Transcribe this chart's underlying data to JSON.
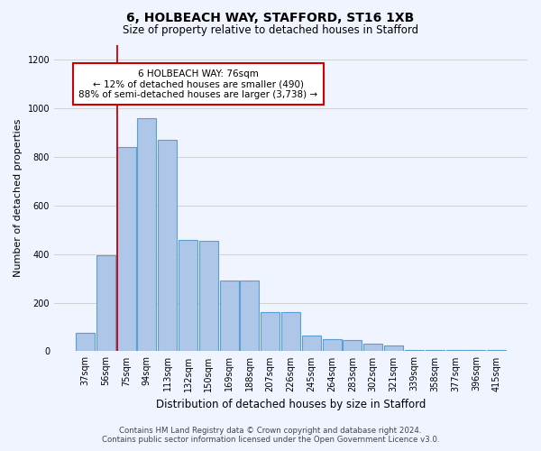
{
  "title1": "6, HOLBEACH WAY, STAFFORD, ST16 1XB",
  "title2": "Size of property relative to detached houses in Stafford",
  "xlabel": "Distribution of detached houses by size in Stafford",
  "ylabel": "Number of detached properties",
  "categories": [
    "37sqm",
    "56sqm",
    "75sqm",
    "94sqm",
    "113sqm",
    "132sqm",
    "150sqm",
    "169sqm",
    "188sqm",
    "207sqm",
    "226sqm",
    "245sqm",
    "264sqm",
    "283sqm",
    "302sqm",
    "321sqm",
    "339sqm",
    "358sqm",
    "377sqm",
    "396sqm",
    "415sqm"
  ],
  "values": [
    75,
    395,
    840,
    960,
    870,
    460,
    455,
    290,
    290,
    160,
    160,
    65,
    50,
    45,
    30,
    25,
    5,
    4,
    4,
    4,
    4
  ],
  "bar_color": "#aec6e8",
  "bar_edge_color": "#5a9fd4",
  "vline_x_index": 2,
  "vline_color": "#cc0000",
  "annotation_text": "6 HOLBEACH WAY: 76sqm\n← 12% of detached houses are smaller (490)\n88% of semi-detached houses are larger (3,738) →",
  "annotation_box_color": "#ffffff",
  "annotation_box_edge": "#cc0000",
  "ylim": [
    0,
    1260
  ],
  "yticks": [
    0,
    200,
    400,
    600,
    800,
    1000,
    1200
  ],
  "footer1": "Contains HM Land Registry data © Crown copyright and database right 2024.",
  "footer2": "Contains public sector information licensed under the Open Government Licence v3.0.",
  "bg_color": "#f0f4ff"
}
